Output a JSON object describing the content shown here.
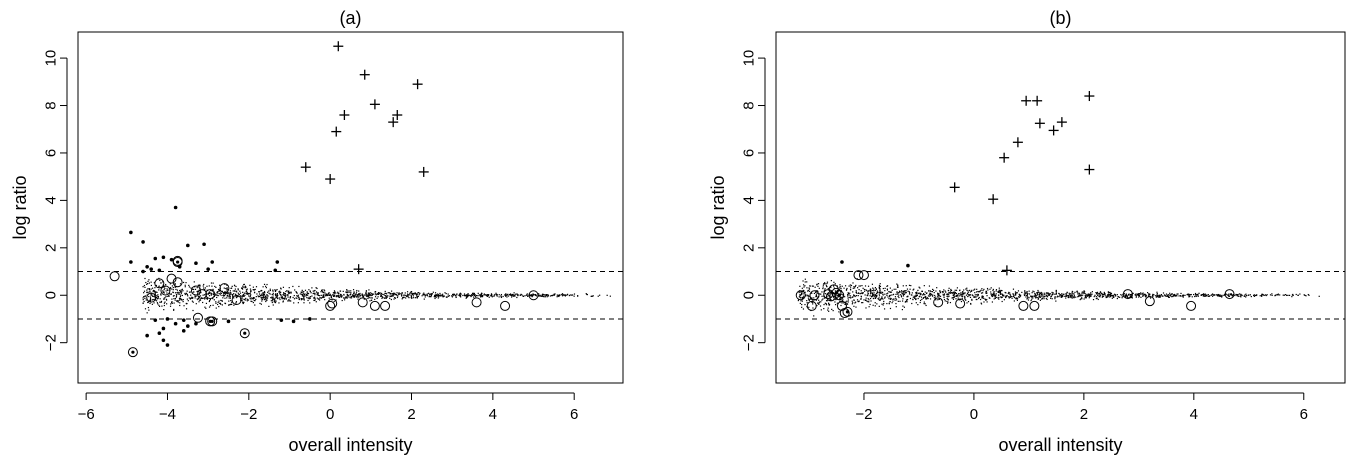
{
  "chart_data": [
    {
      "type": "scatter",
      "title": "(a)",
      "xlabel": "overall intensity",
      "ylabel": "log ratio",
      "xlim": [
        -6.2,
        7.2
      ],
      "ylim": [
        -3.7,
        11.1
      ],
      "xticks": [
        -6,
        -4,
        -2,
        0,
        2,
        4,
        6
      ],
      "yticks": [
        -2,
        0,
        2,
        4,
        6,
        8,
        10
      ],
      "hlines": [
        1,
        -1
      ],
      "grid": false,
      "legend": "none",
      "series": [
        {
          "marker": "plus",
          "points": [
            [
              0.2,
              10.5
            ],
            [
              0.85,
              9.3
            ],
            [
              2.15,
              8.9
            ],
            [
              1.1,
              8.05
            ],
            [
              1.65,
              7.6
            ],
            [
              0.35,
              7.6
            ],
            [
              1.55,
              7.3
            ],
            [
              0.15,
              6.9
            ],
            [
              -0.6,
              5.4
            ],
            [
              0,
              4.9
            ],
            [
              2.3,
              5.2
            ],
            [
              0.7,
              1.1
            ]
          ]
        },
        {
          "marker": "dot",
          "points": [
            [
              -3.8,
              3.7
            ],
            [
              -4.9,
              2.65
            ],
            [
              -4.6,
              2.25
            ],
            [
              -3.1,
              2.15
            ],
            [
              -3.5,
              2.1
            ],
            [
              -1.3,
              1.4
            ],
            [
              -4.3,
              1.55
            ],
            [
              -4.1,
              1.6
            ],
            [
              -3.9,
              1.5
            ],
            [
              -4.9,
              1.4
            ],
            [
              -3.3,
              1.35
            ],
            [
              -2.9,
              1.4
            ],
            [
              -4.5,
              1.2
            ],
            [
              -4.4,
              1.1
            ],
            [
              -4.2,
              1.05
            ],
            [
              -3.7,
              1.2
            ],
            [
              -3.0,
              1.1
            ],
            [
              -1.35,
              1.05
            ],
            [
              -4.6,
              1.0
            ],
            [
              -4.0,
              -1.0
            ],
            [
              -4.3,
              -1.05
            ],
            [
              -3.8,
              -1.2
            ],
            [
              -3.5,
              -1.3
            ],
            [
              -4.1,
              -1.4
            ],
            [
              -4.2,
              -1.6
            ],
            [
              -3.6,
              -1.5
            ],
            [
              -4.5,
              -1.7
            ],
            [
              -4.1,
              -1.9
            ],
            [
              -4.0,
              -2.1
            ],
            [
              -3.3,
              -1.2
            ],
            [
              -3.6,
              -1.05
            ],
            [
              -2.5,
              -1.1
            ],
            [
              -0.9,
              -1.1
            ],
            [
              -1.2,
              -1.05
            ],
            [
              -0.5,
              -1.0
            ]
          ]
        },
        {
          "marker": "circle",
          "points": [
            [
              -5.3,
              0.8
            ],
            [
              -4.4,
              -0.1
            ],
            [
              -4.2,
              0.5
            ],
            [
              -4.05,
              0.2
            ],
            [
              -3.9,
              0.7
            ],
            [
              -3.75,
              1.45
            ],
            [
              -3.75,
              0.55
            ],
            [
              -3.3,
              0.2
            ],
            [
              -3.15,
              0.05
            ],
            [
              -3.25,
              -0.95
            ],
            [
              -2.95,
              0.05
            ],
            [
              -2.6,
              0.3
            ],
            [
              -2.3,
              -0.2
            ],
            [
              0.0,
              -0.45
            ],
            [
              0.05,
              -0.35
            ],
            [
              0.8,
              -0.3
            ],
            [
              1.1,
              -0.45
            ],
            [
              1.35,
              -0.45
            ],
            [
              3.6,
              -0.3
            ],
            [
              4.3,
              -0.45
            ],
            [
              5.0,
              0.0
            ]
          ]
        },
        {
          "marker": "circle-dot",
          "points": [
            [
              -4.85,
              -2.4
            ],
            [
              -2.1,
              -1.6
            ],
            [
              -2.9,
              -1.1
            ],
            [
              -3.75,
              1.4
            ],
            [
              -2.95,
              -1.1
            ]
          ]
        }
      ]
    },
    {
      "type": "scatter",
      "title": "(b)",
      "xlabel": "overall intensity",
      "ylabel": "log ratio",
      "xlim": [
        -3.6,
        6.75
      ],
      "ylim": [
        -3.7,
        11.1
      ],
      "xticks": [
        -2,
        0,
        2,
        4,
        6
      ],
      "yticks": [
        -2,
        0,
        2,
        4,
        6,
        8,
        10
      ],
      "hlines": [
        1,
        -1
      ],
      "grid": false,
      "legend": "none",
      "series": [
        {
          "marker": "plus",
          "points": [
            [
              2.1,
              8.4
            ],
            [
              0.95,
              8.2
            ],
            [
              1.15,
              8.2
            ],
            [
              1.2,
              7.25
            ],
            [
              1.6,
              7.3
            ],
            [
              1.45,
              6.95
            ],
            [
              0.8,
              6.45
            ],
            [
              0.55,
              5.8
            ],
            [
              -0.35,
              4.55
            ],
            [
              0.35,
              4.05
            ],
            [
              2.1,
              5.3
            ],
            [
              0.6,
              1.05
            ]
          ]
        },
        {
          "marker": "dot",
          "points": [
            [
              -2.4,
              1.4
            ],
            [
              -1.2,
              1.25
            ]
          ]
        },
        {
          "marker": "circle",
          "points": [
            [
              -3.15,
              0.0
            ],
            [
              -2.95,
              -0.45
            ],
            [
              -2.9,
              0.0
            ],
            [
              -2.65,
              0.05
            ],
            [
              -2.6,
              -0.05
            ],
            [
              -2.55,
              0.25
            ],
            [
              -2.4,
              -0.45
            ],
            [
              -2.35,
              -0.75
            ],
            [
              -2.1,
              0.85
            ],
            [
              -2.0,
              0.85
            ],
            [
              -0.65,
              -0.3
            ],
            [
              -0.25,
              -0.35
            ],
            [
              0.9,
              -0.45
            ],
            [
              1.1,
              -0.45
            ],
            [
              2.8,
              0.05
            ],
            [
              3.2,
              -0.25
            ],
            [
              3.95,
              -0.45
            ],
            [
              4.65,
              0.05
            ]
          ]
        },
        {
          "marker": "circle-dot",
          "points": [
            [
              -2.5,
              0.1
            ],
            [
              -2.3,
              -0.7
            ],
            [
              -2.45,
              0.0
            ]
          ]
        }
      ]
    }
  ]
}
